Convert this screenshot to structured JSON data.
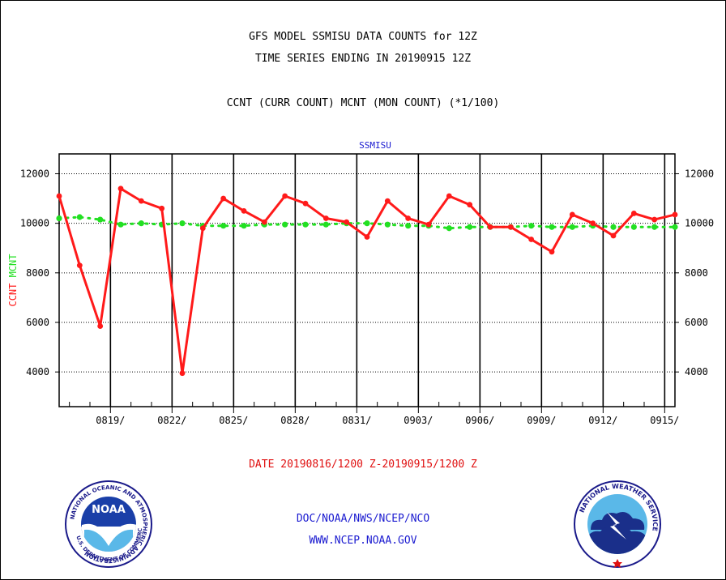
{
  "header": {
    "title_line1": "GFS MODEL SSMISU DATA COUNTS for 12Z",
    "title_line2": "TIME SERIES ENDING IN 20190915 12Z",
    "subtitle": "CCNT (CURR COUNT) MCNT (MON COUNT) (*1/100)"
  },
  "footer": {
    "date_range": "DATE 20190816/1200 Z-20190915/1200 Z",
    "credit": "DOC/NOAA/NWS/NCEP/NCO",
    "url": "WWW.NCEP.NOAA.GOV"
  },
  "logos": {
    "noaa_ring_text": "NATIONAL OCEANIC AND ATMOSPHERIC ADMINISTRATION",
    "noaa_bottom_text": "U.S. DEPARTMENT OF COMMERCE",
    "noaa_center_text": "NOAA",
    "nws_ring_text": "NATIONAL WEATHER SERVICE"
  },
  "colors": {
    "ccnt": "#ff1a1a",
    "mcnt": "#22e022",
    "panel_title": "#1a1ad0",
    "date_text": "#e01010"
  },
  "chart_data": {
    "type": "line",
    "panel_title": "SSMISU",
    "ylabel_ccnt": "CCNT",
    "ylabel_mcnt": "MCNT",
    "ylim": [
      2600,
      12800
    ],
    "yticks": [
      4000,
      6000,
      8000,
      10000,
      12000
    ],
    "ytick_labels": [
      "4000",
      "6000",
      "8000",
      "10000",
      "12000"
    ],
    "x_start": "2019-08-16T12:00",
    "x_end": "2019-09-15T12:00",
    "x_tick_labels": [
      {
        "date": "2019-08-19",
        "label": "0819/"
      },
      {
        "date": "2019-08-22",
        "label": "0822/"
      },
      {
        "date": "2019-08-25",
        "label": "0825/"
      },
      {
        "date": "2019-08-28",
        "label": "0828/"
      },
      {
        "date": "2019-08-31",
        "label": "0831/"
      },
      {
        "date": "2019-09-03",
        "label": "0903/"
      },
      {
        "date": "2019-09-06",
        "label": "0906/"
      },
      {
        "date": "2019-09-09",
        "label": "0909/"
      },
      {
        "date": "2019-09-12",
        "label": "0912/"
      },
      {
        "date": "2019-09-15",
        "label": "0915/"
      }
    ],
    "grid": true,
    "series": [
      {
        "name": "CCNT",
        "x": [
          "2019-08-16",
          "2019-08-17",
          "2019-08-18",
          "2019-08-19",
          "2019-08-20",
          "2019-08-21",
          "2019-08-22",
          "2019-08-23",
          "2019-08-24",
          "2019-08-25",
          "2019-08-26",
          "2019-08-27",
          "2019-08-28",
          "2019-08-29",
          "2019-08-30",
          "2019-08-31",
          "2019-09-01",
          "2019-09-02",
          "2019-09-03",
          "2019-09-04",
          "2019-09-05",
          "2019-09-06",
          "2019-09-07",
          "2019-09-08",
          "2019-09-09",
          "2019-09-10",
          "2019-09-11",
          "2019-09-12",
          "2019-09-13",
          "2019-09-14",
          "2019-09-15"
        ],
        "values": [
          11100,
          8300,
          5850,
          11400,
          10900,
          10600,
          3950,
          9800,
          11000,
          10500,
          10050,
          11100,
          10800,
          10200,
          10050,
          9450,
          10900,
          10200,
          9950,
          11100,
          10750,
          9850,
          9850,
          9350,
          8850,
          10350,
          10000,
          9500,
          10400,
          10150,
          10350
        ]
      },
      {
        "name": "MCNT",
        "x": [
          "2019-08-16",
          "2019-08-17",
          "2019-08-18",
          "2019-08-19",
          "2019-08-20",
          "2019-08-21",
          "2019-08-22",
          "2019-08-23",
          "2019-08-24",
          "2019-08-25",
          "2019-08-26",
          "2019-08-27",
          "2019-08-28",
          "2019-08-29",
          "2019-08-30",
          "2019-08-31",
          "2019-09-01",
          "2019-09-02",
          "2019-09-03",
          "2019-09-04",
          "2019-09-05",
          "2019-09-06",
          "2019-09-07",
          "2019-09-08",
          "2019-09-09",
          "2019-09-10",
          "2019-09-11",
          "2019-09-12",
          "2019-09-13",
          "2019-09-14",
          "2019-09-15"
        ],
        "values": [
          10200,
          10250,
          10150,
          9950,
          10000,
          9950,
          10000,
          9900,
          9900,
          9900,
          9950,
          9950,
          9950,
          9950,
          10000,
          10000,
          9950,
          9900,
          9900,
          9800,
          9850,
          9850,
          9850,
          9900,
          9850,
          9850,
          9900,
          9850,
          9850,
          9850,
          9850
        ]
      }
    ]
  }
}
